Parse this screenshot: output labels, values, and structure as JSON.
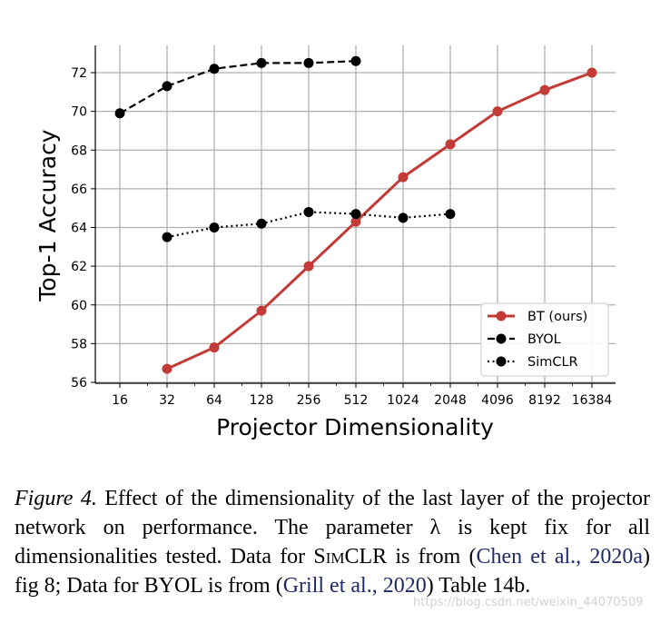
{
  "chart_data": {
    "type": "line",
    "xlabel": "Projector Dimensionality",
    "ylabel": "Top-1 Accuracy",
    "x_scale": "log2",
    "x_ticks": [
      16,
      32,
      64,
      128,
      256,
      512,
      1024,
      2048,
      4096,
      8192,
      16384
    ],
    "ylim": [
      56,
      73
    ],
    "y_ticks": [
      56,
      58,
      60,
      62,
      64,
      66,
      68,
      70,
      72
    ],
    "grid": true,
    "legend_position": "bottom-right",
    "series": [
      {
        "name": "BT (ours)",
        "color": "#c23b36",
        "line_style": "solid",
        "x": [
          32,
          64,
          128,
          256,
          512,
          1024,
          2048,
          4096,
          8192,
          16384
        ],
        "values": [
          56.7,
          57.8,
          59.7,
          62.0,
          64.3,
          66.6,
          68.3,
          70.0,
          71.1,
          72.0
        ]
      },
      {
        "name": "BYOL",
        "color": "#000000",
        "line_style": "dashed",
        "x": [
          16,
          32,
          64,
          128,
          256,
          512
        ],
        "values": [
          69.9,
          71.3,
          72.2,
          72.5,
          72.5,
          72.6
        ]
      },
      {
        "name": "SimCLR",
        "color": "#000000",
        "line_style": "dotted",
        "x": [
          32,
          64,
          128,
          256,
          512,
          1024,
          2048
        ],
        "values": [
          63.5,
          64.0,
          64.2,
          64.8,
          64.7,
          64.5,
          64.7
        ]
      }
    ]
  },
  "caption": {
    "figure_label": "Figure 4.",
    "text_1": " Effect of the dimensionality of the last layer of the projector network on performance.  The parameter λ is kept fix for all dimensionalities tested. Data for ",
    "simclr": "SimCLR",
    "text_2": " is from (",
    "cite_1": "Chen et al., 2020a",
    "text_3": ") fig 8; Data for BYOL is from (",
    "cite_2": "Grill et al., 2020",
    "text_4": ") Table 14b."
  },
  "watermark": "https://blog.csdn.net/weixin_44070509"
}
